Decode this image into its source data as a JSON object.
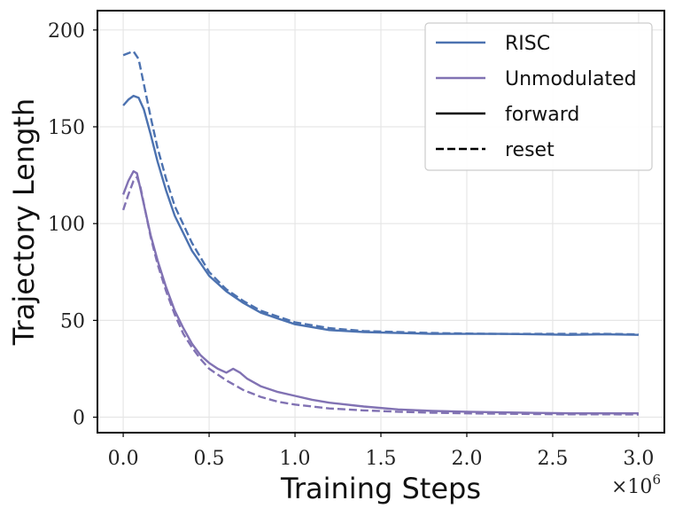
{
  "chart_data": {
    "type": "line",
    "title": "",
    "xlabel": "Training Steps",
    "ylabel": "Trajectory Length",
    "x_scale_label": "×10",
    "x_scale_exponent": "6",
    "xlim": [
      -0.15,
      3.15
    ],
    "ylim": [
      -8,
      210
    ],
    "grid": true,
    "legend_position": "top-right",
    "x_ticks": [
      0.0,
      0.5,
      1.0,
      1.5,
      2.0,
      2.5,
      3.0
    ],
    "x_tick_labels": [
      "0.0",
      "0.5",
      "1.0",
      "1.5",
      "2.0",
      "2.5",
      "3.0"
    ],
    "y_ticks": [
      0,
      50,
      100,
      150,
      200
    ],
    "y_tick_labels": [
      "0",
      "50",
      "100",
      "150",
      "200"
    ],
    "colors": {
      "RISC": "#4c72b0",
      "Unmodulated": "#8172b3",
      "black": "#000000"
    },
    "legend": [
      {
        "label": "RISC",
        "kind": "color",
        "color": "#4c72b0"
      },
      {
        "label": "Unmodulated",
        "kind": "color",
        "color": "#8172b3"
      },
      {
        "label": "forward",
        "kind": "solid",
        "color": "#000000"
      },
      {
        "label": "reset",
        "kind": "dashed",
        "color": "#000000"
      }
    ],
    "series": [
      {
        "name": "RISC forward",
        "method": "RISC",
        "style": "solid",
        "color": "#4c72b0",
        "x": [
          0.0,
          0.03,
          0.06,
          0.09,
          0.12,
          0.16,
          0.2,
          0.25,
          0.3,
          0.4,
          0.5,
          0.6,
          0.7,
          0.8,
          0.9,
          1.0,
          1.2,
          1.4,
          1.6,
          1.8,
          2.0,
          2.2,
          2.4,
          2.6,
          2.8,
          3.0
        ],
        "y": [
          161,
          164,
          166,
          165,
          159,
          146,
          132,
          117,
          104,
          86,
          73,
          65,
          59,
          54,
          51,
          48,
          45,
          44,
          43.5,
          43,
          43,
          43,
          42.8,
          42.5,
          42.8,
          42.5
        ]
      },
      {
        "name": "RISC reset",
        "method": "RISC",
        "style": "dashed",
        "color": "#4c72b0",
        "x": [
          0.0,
          0.03,
          0.06,
          0.09,
          0.12,
          0.16,
          0.2,
          0.25,
          0.3,
          0.4,
          0.5,
          0.6,
          0.7,
          0.8,
          0.9,
          1.0,
          1.2,
          1.4,
          1.6,
          1.8,
          2.0,
          2.2,
          2.4,
          2.6,
          2.8,
          3.0
        ],
        "y": [
          187,
          188,
          189,
          185,
          172,
          155,
          139,
          123,
          109,
          90,
          75,
          66,
          60,
          55,
          52,
          49,
          46,
          44.5,
          44,
          43.5,
          43.2,
          43,
          43,
          43,
          43,
          42.8
        ]
      },
      {
        "name": "Unmodulated forward",
        "method": "Unmodulated",
        "style": "solid",
        "color": "#8172b3",
        "x": [
          0.0,
          0.03,
          0.06,
          0.08,
          0.1,
          0.13,
          0.16,
          0.2,
          0.25,
          0.3,
          0.35,
          0.4,
          0.45,
          0.5,
          0.55,
          0.6,
          0.64,
          0.68,
          0.72,
          0.8,
          0.9,
          1.0,
          1.1,
          1.2,
          1.4,
          1.6,
          1.8,
          2.0,
          2.2,
          2.4,
          2.6,
          2.8,
          3.0
        ],
        "y": [
          115,
          122,
          127,
          126,
          118,
          106,
          94,
          81,
          67,
          55,
          46,
          38,
          32,
          28,
          25,
          23,
          25,
          23,
          20,
          16,
          13,
          11,
          9,
          7.5,
          5.5,
          4,
          3.2,
          2.8,
          2.5,
          2.2,
          2.0,
          2.0,
          2.0
        ]
      },
      {
        "name": "Unmodulated reset",
        "method": "Unmodulated",
        "style": "dashed",
        "color": "#8172b3",
        "x": [
          0.0,
          0.03,
          0.06,
          0.08,
          0.1,
          0.13,
          0.16,
          0.2,
          0.25,
          0.3,
          0.35,
          0.4,
          0.45,
          0.5,
          0.55,
          0.6,
          0.7,
          0.8,
          0.9,
          1.0,
          1.1,
          1.2,
          1.4,
          1.6,
          1.8,
          2.0,
          2.2,
          2.4,
          2.6,
          2.8,
          3.0
        ],
        "y": [
          107,
          115,
          122,
          124,
          119,
          106,
          93,
          79,
          65,
          53,
          43,
          36,
          30,
          25,
          22,
          19,
          14,
          10.5,
          8,
          6.5,
          5.5,
          4.5,
          3.5,
          2.8,
          2.3,
          2.0,
          1.8,
          1.6,
          1.5,
          1.5,
          1.4
        ]
      }
    ]
  }
}
